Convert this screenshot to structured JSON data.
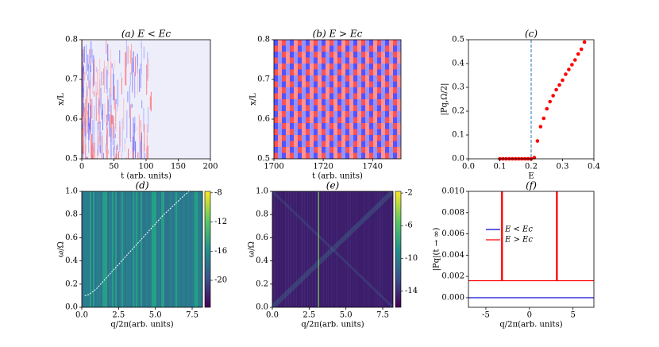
{
  "chart_data": [
    {
      "type": "heatmap",
      "title": "(a) E < Ec",
      "colormap": "bwr",
      "x_label": "t (arb. units)",
      "y_label": "x/L",
      "xlim": [
        0,
        200
      ],
      "xticks": [
        0,
        50,
        100,
        150,
        200
      ],
      "ylim": [
        0.5,
        0.8
      ],
      "yticks": [
        0.5,
        0.6,
        0.7,
        0.8
      ]
    },
    {
      "type": "heatmap",
      "title": "(b) E > Ec",
      "colormap": "bwr-lattice",
      "x_label": "t (arb. units)",
      "y_label": "x/L",
      "xlim": [
        1700,
        1751.5
      ],
      "xticks": [
        1700,
        1720,
        1740
      ],
      "ylim": [
        0.5,
        0.8
      ],
      "yticks": [
        0.5,
        0.6,
        0.7,
        0.8
      ]
    },
    {
      "type": "scatter",
      "title": "(c)",
      "x_label": "E",
      "y_label": "|Pq,Ω/2|",
      "color": "#ff0000",
      "vline": 0.2,
      "vline_color": "#1f77b4",
      "x": [
        0.1,
        0.11,
        0.12,
        0.13,
        0.14,
        0.15,
        0.16,
        0.17,
        0.18,
        0.19,
        0.2,
        0.21,
        0.22,
        0.23,
        0.24,
        0.25,
        0.26,
        0.27,
        0.28,
        0.29,
        0.3,
        0.31,
        0.32,
        0.33,
        0.34,
        0.35,
        0.36,
        0.37
      ],
      "values": [
        0,
        0,
        0,
        0,
        0,
        0,
        0,
        0,
        0,
        0,
        0,
        0.005,
        0.075,
        0.135,
        0.17,
        0.21,
        0.24,
        0.265,
        0.29,
        0.31,
        0.33,
        0.355,
        0.375,
        0.395,
        0.415,
        0.44,
        0.46,
        0.49
      ],
      "xlim": [
        0,
        0.4
      ],
      "xticks": [
        {
          "value": 0,
          "label": "0.0"
        },
        0.1,
        0.2,
        0.3,
        0.4
      ],
      "ylim": [
        0,
        0.5
      ],
      "yticks": [
        {
          "value": 0,
          "label": "0.0"
        },
        0.1,
        0.2,
        0.3,
        0.4,
        0.5
      ]
    },
    {
      "type": "heatmap",
      "title": "(d)",
      "colormap": "viridis",
      "x_label": "q/2π(arb. units)",
      "y_label": "ω/Ω",
      "xlim": [
        0,
        8.2
      ],
      "xticks": [
        {
          "value": 0,
          "label": "0.0"
        },
        2.5,
        {
          "value": 5,
          "label": "5.0"
        },
        7.5
      ],
      "ylim": [
        0,
        1
      ],
      "yticks": [
        {
          "value": 0,
          "label": "0.0"
        },
        0.2,
        0.4,
        0.6,
        0.8,
        {
          "value": 1,
          "label": "1.0"
        }
      ],
      "colorbar_lim": [
        -23.7,
        -7.8
      ],
      "colorbar_ticks": [
        -8,
        -12,
        -16,
        -20
      ],
      "curve_color": "#ffffff",
      "x": [
        0.2,
        0.5,
        1,
        1.5,
        2,
        2.5,
        3,
        3.5,
        4,
        4.5,
        5,
        5.5,
        6,
        6.5,
        7,
        7.3
      ],
      "values": [
        0.1,
        0.11,
        0.16,
        0.23,
        0.3,
        0.37,
        0.44,
        0.51,
        0.58,
        0.65,
        0.72,
        0.79,
        0.85,
        0.91,
        0.97,
        1.0
      ]
    },
    {
      "type": "heatmap",
      "title": "(e)",
      "colormap": "viridis-dark",
      "x_label": "q/2π(arb. units)",
      "y_label": "ω/Ω",
      "xlim": [
        0,
        8.2
      ],
      "xticks": [
        {
          "value": 0,
          "label": "0.0"
        },
        2.5,
        {
          "value": 5,
          "label": "5.0"
        },
        7.5
      ],
      "ylim": [
        0,
        1
      ],
      "yticks": [
        {
          "value": 0,
          "label": "0.0"
        },
        0.2,
        0.4,
        0.6,
        0.8,
        {
          "value": 1,
          "label": "1.0"
        }
      ],
      "colorbar_lim": [
        -16,
        -1.8
      ],
      "colorbar_ticks": [
        -2,
        -6,
        -10,
        -14
      ]
    },
    {
      "type": "line",
      "title": "(f)",
      "x_label": "q/2π(arb. units)",
      "y_label": "|Pq|(t → ∞)",
      "legend": "center left",
      "xlim": [
        -7,
        7.4
      ],
      "xticks": [
        -5,
        0,
        5
      ],
      "ylim": [
        -0.0009,
        0.01
      ],
      "yticks": [
        {
          "value": 0,
          "label": "0.000"
        },
        {
          "value": 0.002,
          "label": "0.002"
        },
        {
          "value": 0.004,
          "label": "0.004"
        },
        {
          "value": 0.006,
          "label": "0.006"
        },
        {
          "value": 0.008,
          "label": "0.008"
        },
        {
          "value": 0.01,
          "label": "0.010"
        }
      ],
      "series": [
        {
          "name": "E < Ec",
          "color": "#0000cc",
          "x": [
            -7,
            7.4
          ],
          "values": [
            0,
            0
          ]
        },
        {
          "name": "E > Ec",
          "color": "#ff0000",
          "x": [
            -7,
            -3.2,
            -3.2,
            -3.1,
            -3.1,
            3.1,
            3.1,
            3.2,
            3.2,
            7.4
          ],
          "values": [
            0.0016,
            0.0016,
            0.01,
            0.01,
            0.0016,
            0.0016,
            0.01,
            0.01,
            0.0016,
            0.0016
          ]
        }
      ]
    }
  ]
}
